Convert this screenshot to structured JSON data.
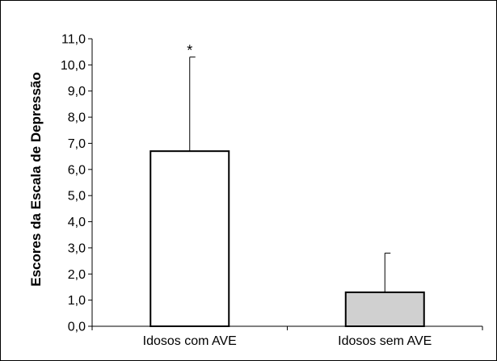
{
  "chart_data": {
    "type": "bar",
    "title": "",
    "xlabel": "",
    "ylabel": "Escores da Escala de Depressão",
    "ylim": [
      0,
      11
    ],
    "ytick_step": 1,
    "ytick_labels": [
      "0,0",
      "1,0",
      "2,0",
      "3,0",
      "4,0",
      "5,0",
      "6,0",
      "7,0",
      "8,0",
      "9,0",
      "10,0",
      "11,0"
    ],
    "categories": [
      "Idosos com AVE",
      "Idosos sem AVE"
    ],
    "values": [
      6.7,
      1.3
    ],
    "error_upper": [
      10.3,
      2.8
    ],
    "annotations": [
      "*",
      ""
    ],
    "bar_colors": [
      "#ffffff",
      "#d0d0d0"
    ],
    "grid": false,
    "legend": "none"
  }
}
